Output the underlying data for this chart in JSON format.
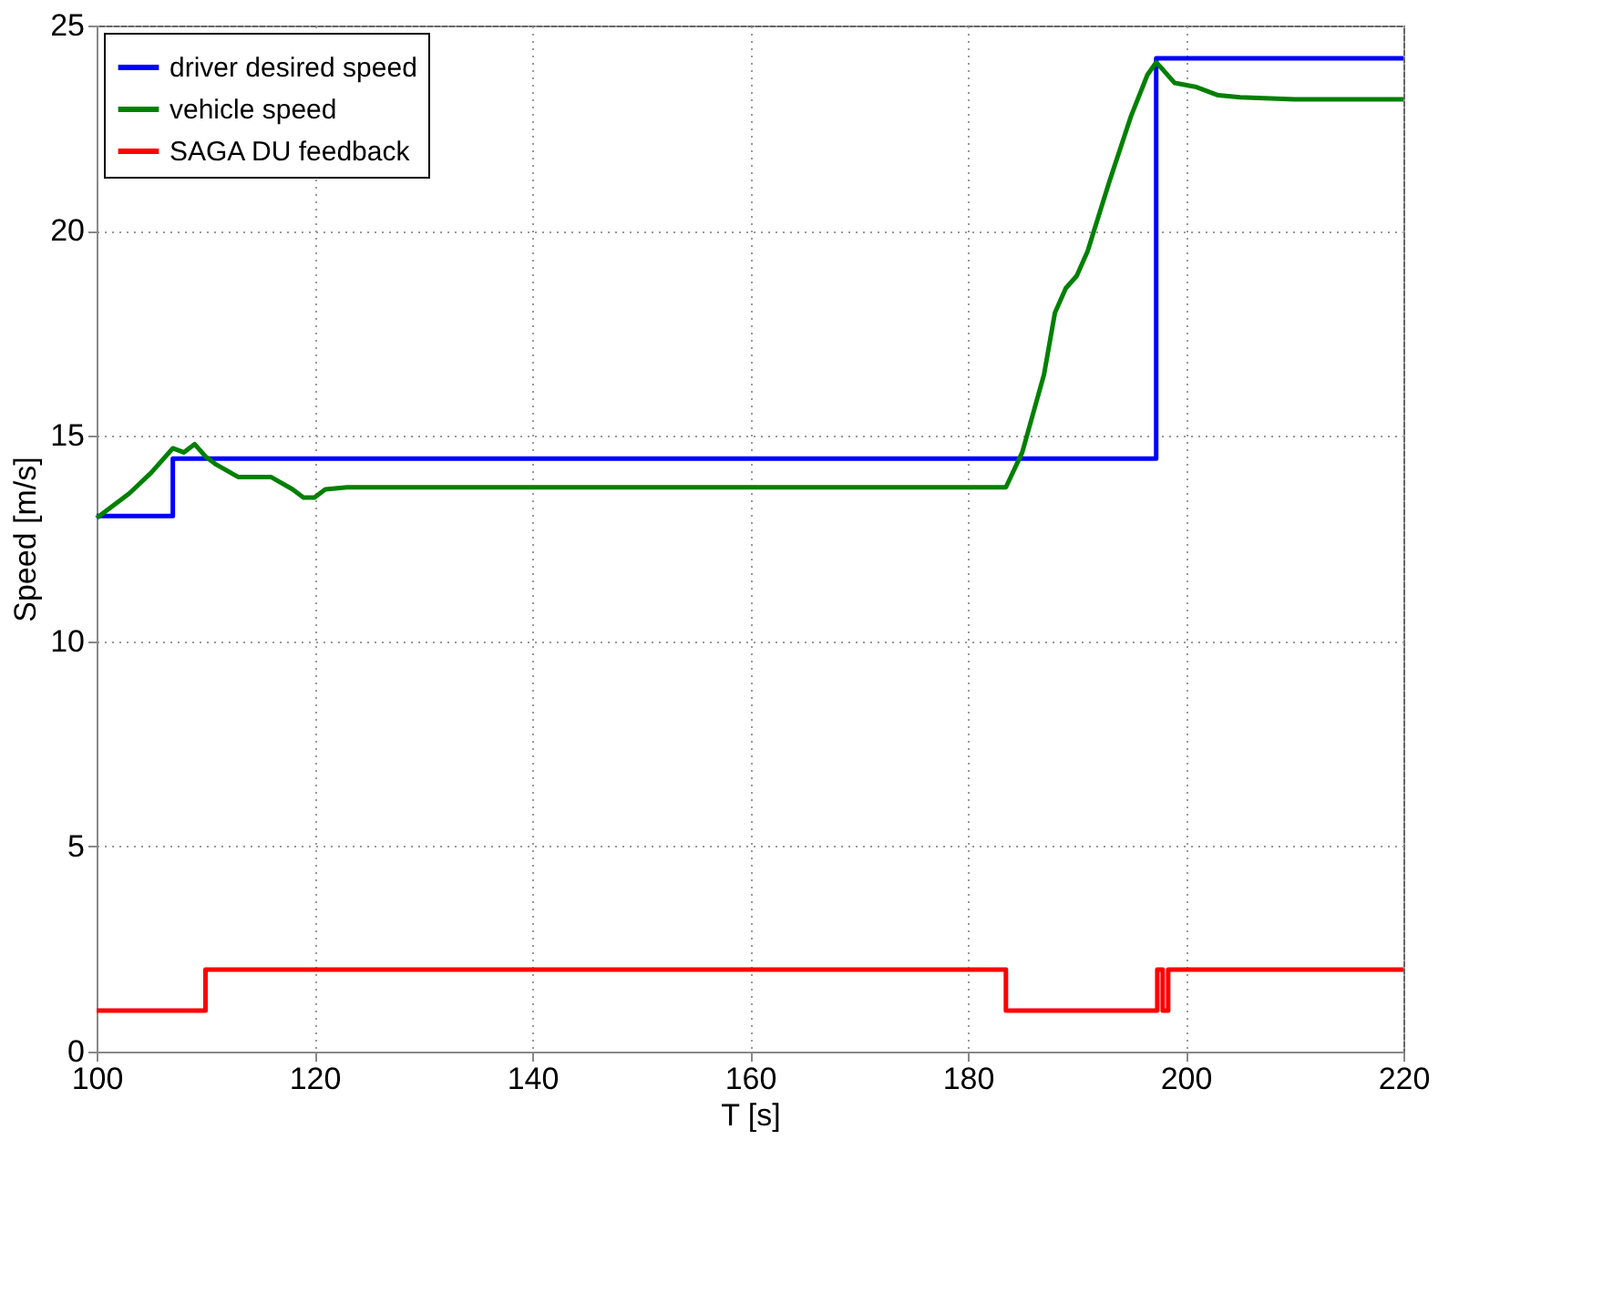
{
  "chart_data": {
    "type": "line",
    "xlabel": "T [s]",
    "ylabel": "Speed [m/s]",
    "xlim": [
      100,
      220
    ],
    "ylim": [
      0,
      25
    ],
    "xticks": [
      100,
      120,
      140,
      160,
      180,
      200,
      220
    ],
    "yticks": [
      0,
      5,
      10,
      15,
      20,
      25
    ],
    "grid": true,
    "legend": "top left",
    "line_style": "solid",
    "marker": "none",
    "series": [
      {
        "name": "driver desired speed",
        "color": "#0000ff",
        "x": [
          100,
          107,
          107,
          197.3,
          197.3,
          220
        ],
        "values": [
          13.05,
          13.05,
          14.45,
          14.45,
          24.2,
          24.2
        ]
      },
      {
        "name": "vehicle speed",
        "color": "#008000",
        "x": [
          100,
          101,
          103,
          105,
          107,
          108,
          109,
          110,
          111,
          113,
          116,
          118,
          119,
          120,
          121,
          123,
          140,
          160,
          180,
          183.5,
          185,
          187,
          188,
          189,
          190,
          191,
          193,
          195,
          196.5,
          197.3,
          198,
          199,
          201,
          203,
          205,
          210,
          215,
          220
        ],
        "values": [
          13,
          13.2,
          13.6,
          14.1,
          14.7,
          14.6,
          14.8,
          14.5,
          14.3,
          14.0,
          14.0,
          13.7,
          13.5,
          13.5,
          13.7,
          13.75,
          13.75,
          13.75,
          13.75,
          13.75,
          14.6,
          16.5,
          18.0,
          18.6,
          18.9,
          19.5,
          21.2,
          22.8,
          23.8,
          24.1,
          23.9,
          23.6,
          23.5,
          23.3,
          23.25,
          23.2,
          23.2,
          23.2
        ]
      },
      {
        "name": "SAGA DU feedback",
        "color": "#ff0000",
        "x": [
          100,
          110,
          110,
          183.5,
          183.5,
          197.4,
          197.4,
          197.9,
          197.9,
          198.4,
          198.4,
          220
        ],
        "values": [
          1,
          1,
          2,
          2,
          1,
          1,
          2,
          2,
          1,
          1,
          2,
          2
        ]
      }
    ]
  }
}
